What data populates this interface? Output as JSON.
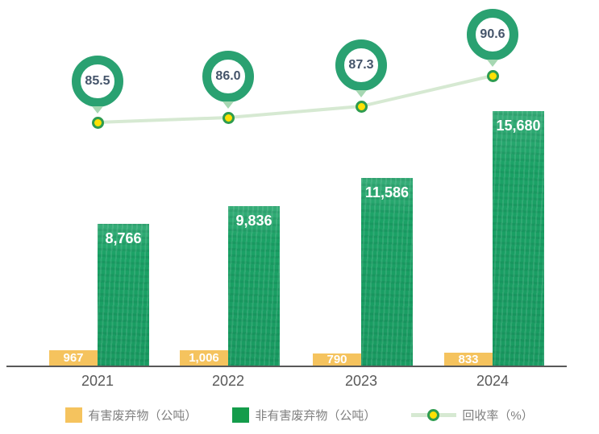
{
  "chart_data": {
    "type": "bar",
    "title": "",
    "xlabel": "",
    "ylabel": "",
    "categories": [
      "2021",
      "2022",
      "2023",
      "2024"
    ],
    "series": [
      {
        "name": "有害废弃物（公吨）",
        "type": "bar",
        "color": "#F5C35E",
        "values": [
          967,
          1006,
          790,
          833
        ],
        "labels": [
          "967",
          "1,006",
          "790",
          "833"
        ]
      },
      {
        "name": "非有害废弃物（公吨）",
        "type": "bar",
        "color": "#1BA266",
        "values": [
          8766,
          9836,
          11586,
          15680
        ],
        "labels": [
          "8,766",
          "9,836",
          "11,586",
          "15,680"
        ]
      },
      {
        "name": "回收率（%）",
        "type": "line",
        "color": "#D6E9D2",
        "marker_color": "#FFE104",
        "marker_border": "#2E9C4F",
        "values": [
          85.5,
          86.0,
          87.3,
          90.6
        ],
        "labels": [
          "85.5",
          "86.0",
          "87.3",
          "90.6"
        ]
      }
    ],
    "ylim": [
      0,
      16000
    ],
    "grid": false,
    "legend_position": "bottom",
    "axis_line_color": "#595959",
    "category_label_color": "#595959",
    "bar_label_color": "#FFFFFF",
    "badge_ring_color": "#2AA171",
    "badge_pointer_color": "#A6D7B2",
    "badge_text_color": "#44546A",
    "legend_text_color": "#7F7F7F"
  }
}
